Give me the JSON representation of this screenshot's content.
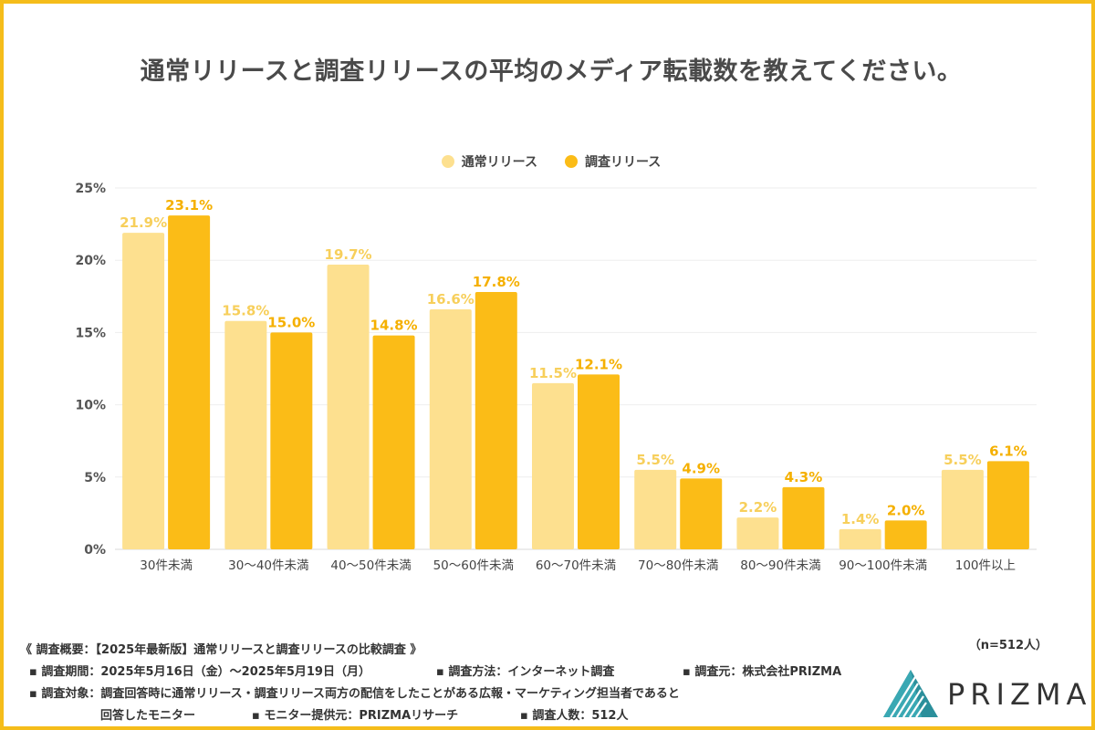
{
  "title": "通常リリースと調査リリースの平均のメディア転載数を教えてください。",
  "legend": [
    {
      "label": "通常リリース",
      "color": "#fde08f"
    },
    {
      "label": "調査リリース",
      "color": "#fbbc17"
    }
  ],
  "chart_data": {
    "type": "bar",
    "title": "通常リリースと調査リリースの平均のメディア転載数を教えてください。",
    "categories": [
      "30件未満",
      "30〜40件未満",
      "40〜50件未満",
      "50〜60件未満",
      "60〜70件未満",
      "70〜80件未満",
      "80〜90件未満",
      "90〜100件未満",
      "100件以上"
    ],
    "series": [
      {
        "name": "通常リリース",
        "color": "#fde08f",
        "label_color": "#f7cf5b",
        "values": [
          21.9,
          15.8,
          19.7,
          16.6,
          11.5,
          5.5,
          2.2,
          1.4,
          5.5
        ],
        "labels": [
          "21.9%",
          "15.8%",
          "19.7%",
          "16.6%",
          "11.5%",
          "5.5%",
          "2.2%",
          "1.4%",
          "5.5%"
        ]
      },
      {
        "name": "調査リリース",
        "color": "#fbbc17",
        "label_color": "#f5b000",
        "values": [
          23.1,
          15.0,
          14.8,
          17.8,
          12.1,
          4.9,
          4.3,
          2.0,
          6.1
        ],
        "labels": [
          "23.1%",
          "15.0%",
          "14.8%",
          "17.8%",
          "12.1%",
          "4.9%",
          "4.3%",
          "2.0%",
          "6.1%"
        ]
      }
    ],
    "yticks": [
      0,
      5,
      10,
      15,
      20,
      25
    ],
    "ytick_labels": [
      "0%",
      "5%",
      "10%",
      "15%",
      "20%",
      "25%"
    ],
    "ylim": [
      0,
      25
    ],
    "grid": true,
    "legend_position": "top-center"
  },
  "footer": {
    "overview": "《 調査概要：【2025年最新版】通常リリースと調査リリースの比較調査 》",
    "period": "▪ 調査期間：2025年5月16日（金）〜2025年5月19日（月）",
    "method": "▪ 調査方法：インターネット調査",
    "source": "▪ 調査元：株式会社PRIZMA",
    "target": "▪ 調査対象：調査回答時に通常リリース・調査リリース両方の配信をしたことがある広報・マーケティング担当者であると",
    "target2": "回答したモニター",
    "provider": "▪ モニター提供元：PRIZMAリサーチ",
    "count": "▪ 調査人数：512人",
    "sample": "（n=512人）"
  },
  "logo": {
    "text": "PRIZMA"
  }
}
